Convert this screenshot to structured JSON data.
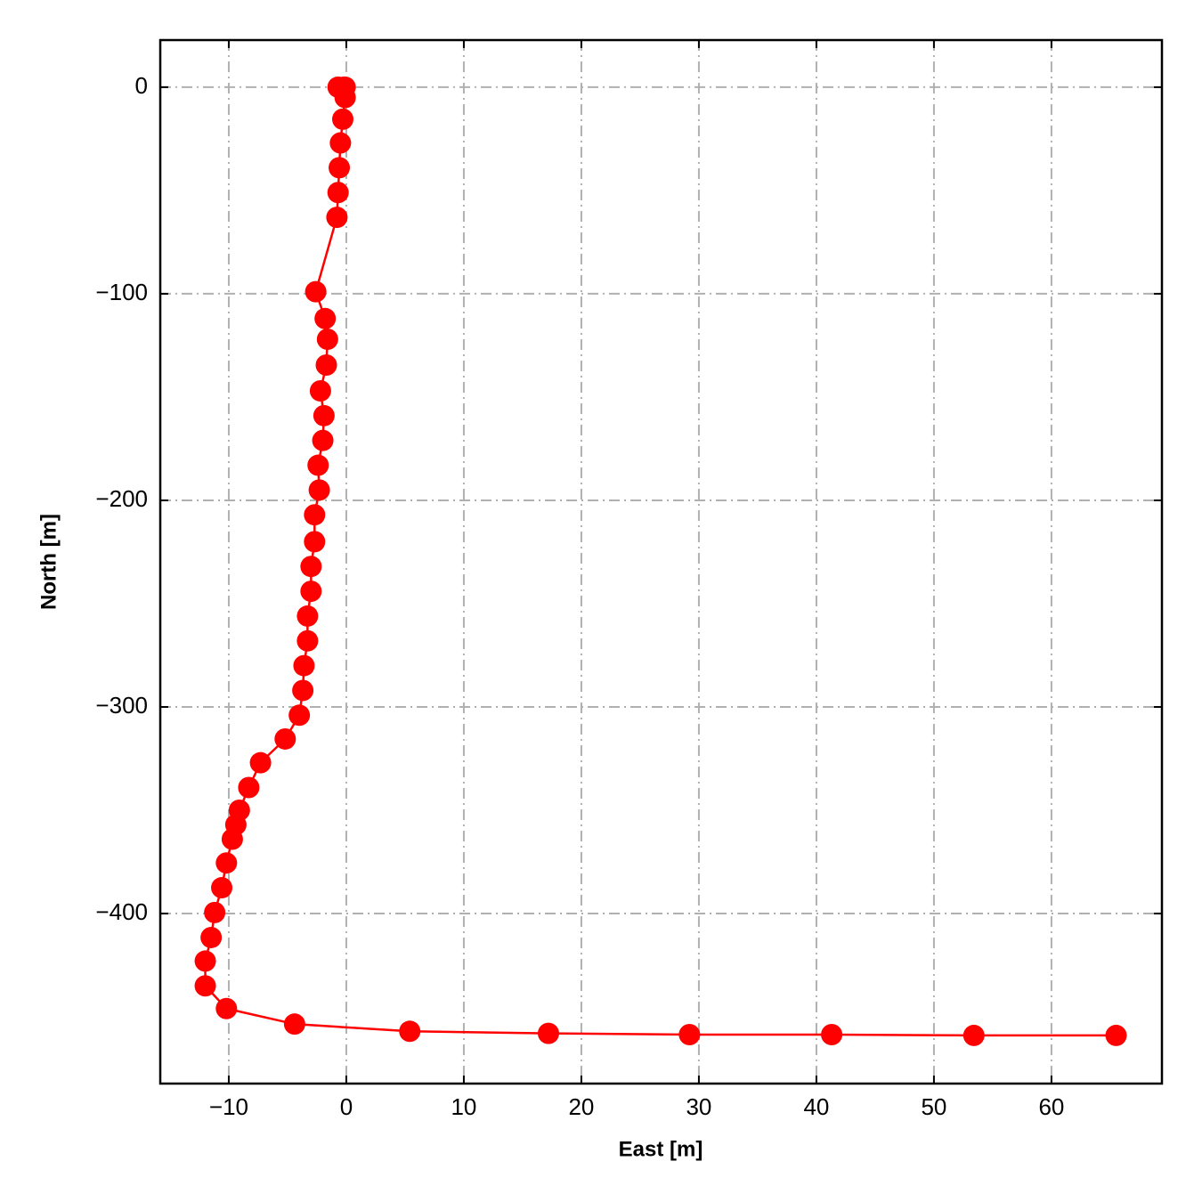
{
  "chart_data": {
    "type": "line",
    "x_label": "East [m]",
    "y_label": "North [m]",
    "xlim": [
      -15.83,
      69.4
    ],
    "ylim": [
      -482.3,
      22.8
    ],
    "xticks": [
      {
        "value": -10,
        "label": "−10"
      },
      0,
      10,
      20,
      30,
      40,
      50,
      60
    ],
    "yticks": [
      {
        "value": -400,
        "label": "−400"
      },
      {
        "value": -300,
        "label": "−300"
      },
      {
        "value": -200,
        "label": "−200"
      },
      {
        "value": -100,
        "label": "−100"
      },
      0
    ],
    "grid": true,
    "series": [
      {
        "color": "#ff0000",
        "x": [
          -0.2,
          -0.7,
          -0.1,
          -0.1,
          -0.3,
          -0.5,
          -0.6,
          -0.7,
          -0.8,
          -2.6,
          -1.8,
          -1.6,
          -1.7,
          -2.2,
          -1.9,
          -2.0,
          -2.4,
          -2.3,
          -2.7,
          -2.7,
          -3.0,
          -3.0,
          -3.3,
          -3.3,
          -3.6,
          -3.7,
          -4.0,
          -5.2,
          -7.3,
          -8.3,
          -9.1,
          -9.4,
          -9.7,
          -10.2,
          -10.6,
          -11.2,
          -11.5,
          -12.0,
          -12.0,
          -10.2,
          -4.4,
          5.4,
          17.2,
          29.2,
          41.3,
          53.4,
          65.5
        ],
        "values": [
          0,
          0,
          0,
          -5,
          -15.5,
          -27,
          -39,
          -51,
          -63,
          -99,
          -112,
          -122,
          -134.5,
          -147,
          -159,
          -171,
          -183,
          -195,
          -207,
          -220,
          -232,
          -244,
          -256,
          -268,
          -280,
          -292,
          -304,
          -315.5,
          -327,
          -339,
          -350,
          -357,
          -364,
          -375.5,
          -387.5,
          -399.5,
          -411.6,
          -423,
          -435,
          -446,
          -453.5,
          -457,
          -458,
          -458.6,
          -458.6,
          -459,
          -459
        ]
      }
    ]
  }
}
